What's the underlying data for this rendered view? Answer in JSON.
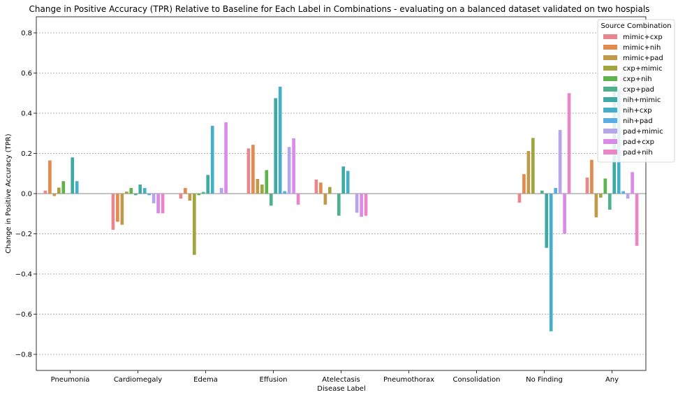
{
  "chart_data": {
    "type": "bar",
    "title": "Change in Positive Accuracy (TPR) Relative to Baseline for Each Label in Combinations - evaluating on a balanced dataset validated on two hospials",
    "xlabel": "Disease Label",
    "ylabel": "Change in Positive Accuracy (TPR)",
    "ylim": [
      -0.88,
      0.88
    ],
    "yticks": [
      -0.8,
      -0.6,
      -0.4,
      -0.2,
      0.0,
      0.2,
      0.4,
      0.6,
      0.8
    ],
    "ytick_labels": [
      "−0.8",
      "−0.6",
      "−0.4",
      "−0.2",
      "0.0",
      "0.2",
      "0.4",
      "0.6",
      "0.8"
    ],
    "grid": "horizontal dotted",
    "legend_title": "Source Combination",
    "legend_placement": "top-right",
    "categories": [
      "Pneumonia",
      "Cardiomegaly",
      "Edema",
      "Effusion",
      "Atelectasis",
      "Pneumothorax",
      "Consolidation",
      "No Finding",
      "Any"
    ],
    "series": [
      {
        "name": "mimic+cxp",
        "color": "#e8878e",
        "values": [
          0.015,
          -0.18,
          -0.025,
          0.225,
          0.07,
          null,
          null,
          -0.045,
          0.08
        ]
      },
      {
        "name": "mimic+nih",
        "color": "#e38a4e",
        "values": [
          0.165,
          -0.14,
          0.028,
          0.243,
          0.055,
          null,
          null,
          0.097,
          0.168
        ]
      },
      {
        "name": "mimic+pad",
        "color": "#c09a4a",
        "values": [
          -0.012,
          -0.155,
          -0.035,
          0.073,
          -0.055,
          null,
          null,
          0.212,
          -0.118
        ]
      },
      {
        "name": "cxp+mimic",
        "color": "#a3a33f",
        "values": [
          0.03,
          0.01,
          -0.305,
          0.045,
          0.033,
          null,
          null,
          0.277,
          -0.02
        ]
      },
      {
        "name": "cxp+nih",
        "color": "#5db34e",
        "values": [
          0.062,
          0.028,
          -0.008,
          0.117,
          null,
          null,
          null,
          null,
          0.075
        ]
      },
      {
        "name": "cxp+pad",
        "color": "#4fb08c",
        "values": [
          null,
          -0.008,
          0.008,
          -0.06,
          -0.11,
          null,
          null,
          0.015,
          -0.08
        ]
      },
      {
        "name": "nih+mimic",
        "color": "#3fa9a4",
        "values": [
          0.18,
          0.045,
          0.093,
          0.475,
          0.135,
          null,
          null,
          -0.27,
          0.545
        ]
      },
      {
        "name": "nih+cxp",
        "color": "#45aec8",
        "values": [
          0.062,
          0.028,
          0.337,
          0.532,
          0.113,
          null,
          null,
          -0.685,
          0.52
        ]
      },
      {
        "name": "nih+pad",
        "color": "#58aee2",
        "values": [
          null,
          -0.008,
          null,
          0.012,
          null,
          null,
          null,
          0.028,
          0.012
        ]
      },
      {
        "name": "pad+mimic",
        "color": "#b7a5ea",
        "values": [
          null,
          -0.048,
          0.028,
          0.232,
          -0.095,
          null,
          null,
          0.317,
          -0.025
        ]
      },
      {
        "name": "pad+cxp",
        "color": "#dc8ae9",
        "values": [
          null,
          -0.098,
          0.355,
          0.275,
          -0.115,
          null,
          null,
          -0.2,
          0.107
        ]
      },
      {
        "name": "pad+nih",
        "color": "#ea86c8",
        "values": [
          null,
          -0.098,
          null,
          -0.055,
          -0.11,
          null,
          null,
          0.5,
          -0.26
        ]
      }
    ]
  }
}
